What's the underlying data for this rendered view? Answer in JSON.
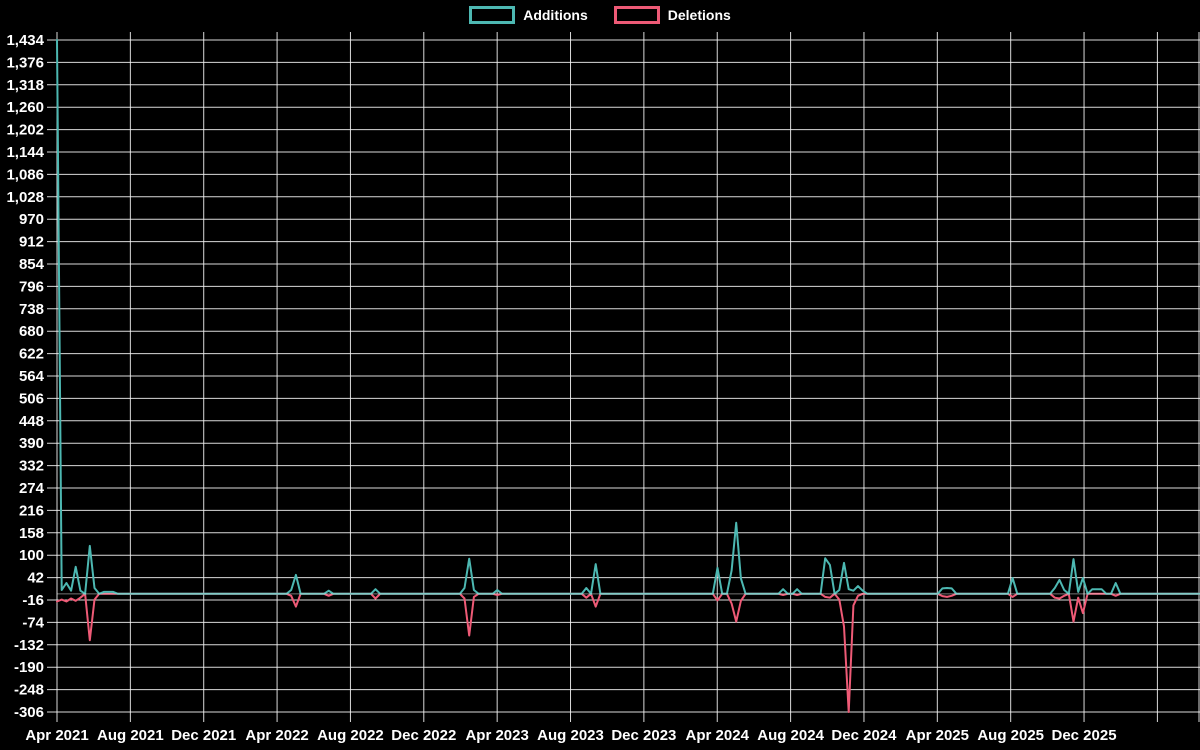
{
  "chart_data": {
    "type": "line",
    "title": "",
    "legend": [
      "Additions",
      "Deletions"
    ],
    "x_axis": {
      "labels": [
        "Apr 2021",
        "Aug 2021",
        "Dec 2021",
        "Apr 2022",
        "Aug 2022",
        "Dec 2022",
        "Apr 2023",
        "Aug 2023",
        "Dec 2023",
        "Apr 2024",
        "Aug 2024",
        "Dec 2024",
        "Apr 2025",
        "Aug 2025",
        "Dec 2025"
      ],
      "unit": "week",
      "num_points": 245
    },
    "y_axis": {
      "min": -306,
      "max": 1434,
      "tick_step": 58,
      "tick_labels": [
        "1,434",
        "1,376",
        "1,318",
        "1,260",
        "1,202",
        "1,144",
        "1,086",
        "1,028",
        "970",
        "912",
        "854",
        "796",
        "738",
        "680",
        "622",
        "564",
        "506",
        "448",
        "390",
        "332",
        "274",
        "216",
        "158",
        "100",
        "42",
        "-16",
        "-74",
        "-132",
        "-190",
        "-248",
        "-306"
      ]
    },
    "grid": true,
    "background_color": "#000000",
    "grid_color": "#f2f2f2",
    "text_color": "#ffffff",
    "series": [
      {
        "name": "Additions",
        "color": "#4db8b2",
        "sign": 1,
        "default": 0,
        "points_sparse": [
          [
            0,
            1434
          ],
          [
            1,
            10
          ],
          [
            2,
            28
          ],
          [
            3,
            8
          ],
          [
            4,
            70
          ],
          [
            5,
            8
          ],
          [
            7,
            124
          ],
          [
            8,
            15
          ],
          [
            10,
            5
          ],
          [
            11,
            5
          ],
          [
            12,
            5
          ],
          [
            50,
            10
          ],
          [
            51,
            49
          ],
          [
            58,
            8
          ],
          [
            68,
            12
          ],
          [
            87,
            15
          ],
          [
            88,
            91
          ],
          [
            89,
            10
          ],
          [
            94,
            10
          ],
          [
            113,
            15
          ],
          [
            115,
            77
          ],
          [
            141,
            67
          ],
          [
            144,
            60
          ],
          [
            145,
            184
          ],
          [
            146,
            40
          ],
          [
            155,
            12
          ],
          [
            158,
            12
          ],
          [
            164,
            92
          ],
          [
            165,
            75
          ],
          [
            167,
            10
          ],
          [
            168,
            80
          ],
          [
            169,
            12
          ],
          [
            170,
            8
          ],
          [
            171,
            20
          ],
          [
            172,
            8
          ],
          [
            189,
            14
          ],
          [
            190,
            15
          ],
          [
            191,
            14
          ],
          [
            204,
            41
          ],
          [
            213,
            15
          ],
          [
            214,
            36
          ],
          [
            215,
            10
          ],
          [
            217,
            90
          ],
          [
            218,
            5
          ],
          [
            219,
            41
          ],
          [
            221,
            12
          ],
          [
            222,
            12
          ],
          [
            223,
            12
          ],
          [
            226,
            28
          ]
        ]
      },
      {
        "name": "Deletions",
        "color": "#ee5a76",
        "sign": -1,
        "default": 0,
        "points_sparse": [
          [
            0,
            20
          ],
          [
            1,
            15
          ],
          [
            2,
            20
          ],
          [
            3,
            12
          ],
          [
            4,
            18
          ],
          [
            5,
            10
          ],
          [
            7,
            120
          ],
          [
            8,
            15
          ],
          [
            50,
            5
          ],
          [
            51,
            33
          ],
          [
            58,
            5
          ],
          [
            68,
            12
          ],
          [
            87,
            12
          ],
          [
            88,
            108
          ],
          [
            89,
            8
          ],
          [
            94,
            3
          ],
          [
            113,
            10
          ],
          [
            115,
            33
          ],
          [
            141,
            17
          ],
          [
            144,
            25
          ],
          [
            145,
            72
          ],
          [
            146,
            18
          ],
          [
            155,
            3
          ],
          [
            158,
            3
          ],
          [
            164,
            8
          ],
          [
            165,
            10
          ],
          [
            167,
            15
          ],
          [
            168,
            85
          ],
          [
            169,
            306
          ],
          [
            170,
            30
          ],
          [
            171,
            5
          ],
          [
            189,
            6
          ],
          [
            190,
            8
          ],
          [
            191,
            5
          ],
          [
            204,
            8
          ],
          [
            213,
            10
          ],
          [
            214,
            12
          ],
          [
            215,
            5
          ],
          [
            217,
            72
          ],
          [
            218,
            10
          ],
          [
            219,
            50
          ],
          [
            226,
            5
          ]
        ]
      }
    ]
  }
}
